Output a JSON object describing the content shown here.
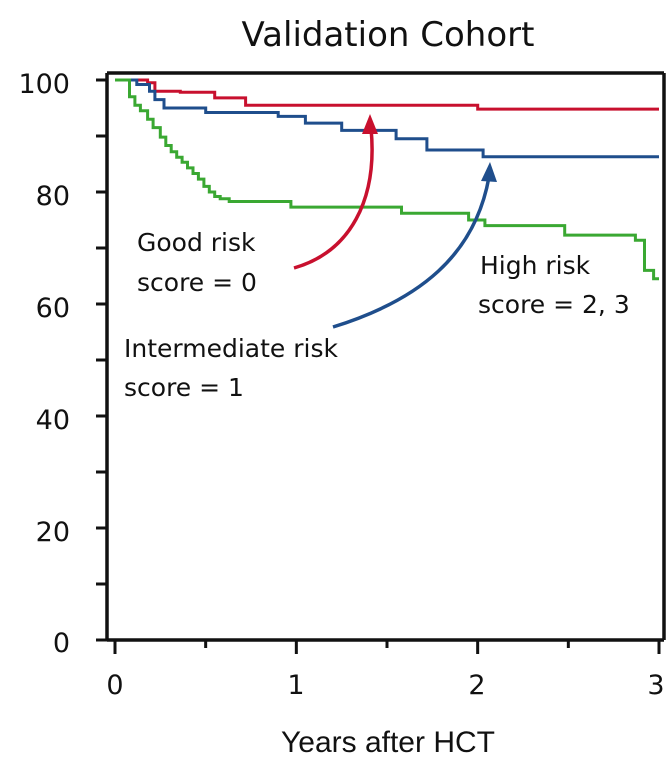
{
  "chart_data": {
    "type": "line",
    "title": "Validation Cohort",
    "xlabel": "Years after HCT",
    "ylabel": "",
    "xlim": [
      0,
      3
    ],
    "ylim": [
      0,
      100
    ],
    "x_ticks": [
      "0",
      "1",
      "2",
      "3"
    ],
    "y_ticks": [
      "0",
      "20",
      "40",
      "60",
      "80",
      "100"
    ],
    "grid": false,
    "step": true,
    "series": [
      {
        "name": "Good risk score = 0",
        "color": "#c8102e",
        "x": [
          0,
          0.18,
          0.22,
          0.36,
          0.55,
          0.72,
          2.0,
          3.0
        ],
        "y": [
          100,
          99.5,
          98.0,
          97.8,
          96.8,
          95.5,
          94.8,
          94.8
        ]
      },
      {
        "name": "Intermediate risk score = 1",
        "color": "#1f4e8c",
        "x": [
          0,
          0.12,
          0.19,
          0.22,
          0.27,
          0.5,
          0.9,
          1.05,
          1.25,
          1.55,
          1.72,
          2.03,
          3.0
        ],
        "y": [
          100,
          99.2,
          98.0,
          96.5,
          95.0,
          94.2,
          93.5,
          92.3,
          91.0,
          89.5,
          87.5,
          86.3,
          86.3
        ]
      },
      {
        "name": "High risk score = 2, 3",
        "color": "#3aa832",
        "x": [
          0,
          0.08,
          0.11,
          0.14,
          0.18,
          0.21,
          0.25,
          0.28,
          0.31,
          0.34,
          0.37,
          0.4,
          0.43,
          0.46,
          0.49,
          0.52,
          0.55,
          0.58,
          0.63,
          0.97,
          1.58,
          1.95,
          2.04,
          2.48,
          2.87,
          2.92,
          2.97,
          3.0
        ],
        "y": [
          100,
          97.0,
          95.5,
          94.5,
          93.0,
          91.5,
          89.8,
          88.3,
          87.2,
          86.2,
          85.3,
          84.3,
          83.3,
          82.3,
          81.0,
          80.0,
          79.2,
          78.8,
          78.3,
          77.3,
          76.2,
          75.0,
          74.0,
          72.3,
          71.4,
          66.0,
          64.5,
          64.5
        ]
      }
    ],
    "annotations": [
      {
        "line1": "Good risk",
        "line2": "score = 0",
        "color": "#c8102e"
      },
      {
        "line1": "Intermediate risk",
        "line2": "score = 1",
        "color": "#1f4e8c"
      },
      {
        "line1": "High risk",
        "line2": "score = 2, 3",
        "color": "#3aa832"
      }
    ]
  }
}
